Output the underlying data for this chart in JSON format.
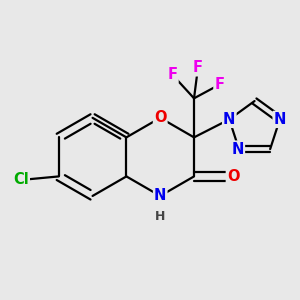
{
  "bg_color": "#e8e8e8",
  "bond_color": "#000000",
  "bond_width": 1.6,
  "atom_colors": {
    "C": "#000000",
    "N": "#0000ee",
    "O": "#ee0000",
    "F": "#ee00ee",
    "Cl": "#00aa00",
    "H": "#444444"
  },
  "font_size_atom": 10.5,
  "font_size_h": 9.0
}
